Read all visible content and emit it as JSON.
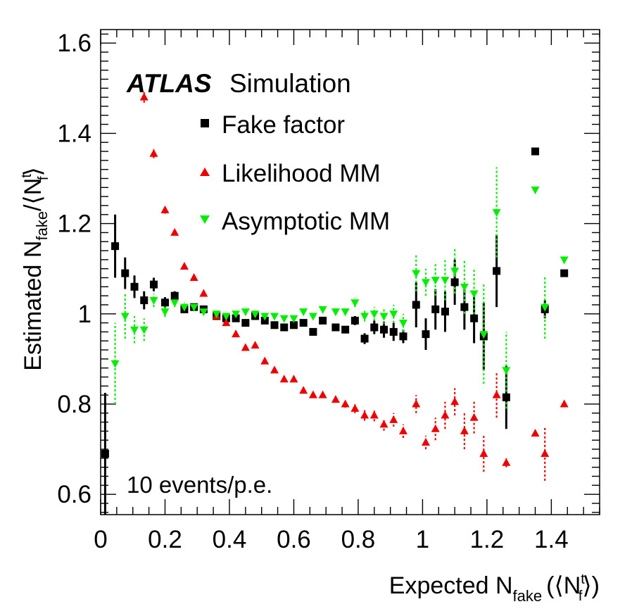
{
  "chart_data": {
    "type": "scatter",
    "experiment": "ATLAS",
    "label_suffix": "Simulation",
    "annotation": "10 events/p.e.",
    "xlabel": {
      "main": "Expected N",
      "sub": "fake",
      "open": "(⟨N",
      "sup": "t",
      "sub2": "f",
      "close": "⟩)"
    },
    "ylabel": {
      "main": "Estimated N",
      "sub": "fake",
      "slash": "/⟨N",
      "sup": "t",
      "sub2": "f",
      "close": "⟩"
    },
    "xlim": [
      0,
      1.55
    ],
    "ylim": [
      0.555,
      1.63
    ],
    "xticks": [
      0,
      0.2,
      0.4,
      0.6,
      0.8,
      1,
      1.2,
      1.4
    ],
    "xtick_labels": [
      "0",
      "0.2",
      "0.4",
      "0.6",
      "0.8",
      "1",
      "1.2",
      "1.4"
    ],
    "yticks": [
      0.6,
      0.8,
      1.0,
      1.2,
      1.4,
      1.6
    ],
    "ytick_labels": [
      "0.6",
      "0.8",
      "1",
      "1.2",
      "1.4",
      "1.6"
    ],
    "colors": {
      "fake_factor": "#000000",
      "likelihood": "#ee0000",
      "asymptotic": "#00ee00"
    },
    "series": [
      {
        "name": "Fake factor",
        "key": "fake_factor",
        "marker": "square",
        "x": [
          0.014,
          0.045,
          0.076,
          0.105,
          0.135,
          0.165,
          0.2,
          0.23,
          0.26,
          0.29,
          0.32,
          0.36,
          0.39,
          0.42,
          0.45,
          0.48,
          0.51,
          0.54,
          0.57,
          0.6,
          0.63,
          0.66,
          0.69,
          0.73,
          0.76,
          0.79,
          0.82,
          0.85,
          0.88,
          0.91,
          0.94,
          0.98,
          1.01,
          1.04,
          1.07,
          1.1,
          1.13,
          1.16,
          1.19,
          1.23,
          1.26,
          1.35,
          1.38,
          1.44
        ],
        "y": [
          0.69,
          1.15,
          1.09,
          1.06,
          1.03,
          1.065,
          1.025,
          1.04,
          1.01,
          1.015,
          1.01,
          0.995,
          0.99,
          0.99,
          0.98,
          0.995,
          0.985,
          0.975,
          0.97,
          0.975,
          0.98,
          0.96,
          0.985,
          0.97,
          0.965,
          0.985,
          0.945,
          0.97,
          0.965,
          0.96,
          0.95,
          1.02,
          0.955,
          1.01,
          1.005,
          1.07,
          1.015,
          0.99,
          0.95,
          1.095,
          0.815,
          1.36,
          1.01,
          1.09
        ],
        "err": [
          0.135,
          0.07,
          0.035,
          0.025,
          0.02,
          0.015,
          0.012,
          0.01,
          0.008,
          0.008,
          0.007,
          0.006,
          0.006,
          0.006,
          0.005,
          0.005,
          0.005,
          0.005,
          0.005,
          0.005,
          0.005,
          0.005,
          0.008,
          0.008,
          0.008,
          0.01,
          0.012,
          0.015,
          0.018,
          0.02,
          0.015,
          0.05,
          0.035,
          0.045,
          0.045,
          0.05,
          0.05,
          0.055,
          0.075,
          0.08,
          0.07,
          0.0,
          0.02,
          0.0
        ]
      },
      {
        "name": "Likelihood MM",
        "key": "likelihood",
        "marker": "triangle-up",
        "x": [
          0.135,
          0.165,
          0.2,
          0.23,
          0.26,
          0.29,
          0.32,
          0.36,
          0.39,
          0.42,
          0.45,
          0.48,
          0.51,
          0.54,
          0.57,
          0.6,
          0.63,
          0.66,
          0.69,
          0.73,
          0.76,
          0.79,
          0.82,
          0.85,
          0.88,
          0.91,
          0.94,
          0.98,
          1.01,
          1.04,
          1.07,
          1.1,
          1.13,
          1.16,
          1.19,
          1.23,
          1.26,
          1.35,
          1.38,
          1.44
        ],
        "y": [
          1.48,
          1.355,
          1.23,
          1.18,
          1.105,
          1.08,
          1.045,
          0.995,
          0.98,
          0.955,
          0.925,
          0.93,
          0.895,
          0.875,
          0.855,
          0.855,
          0.83,
          0.82,
          0.82,
          0.81,
          0.8,
          0.79,
          0.775,
          0.775,
          0.755,
          0.765,
          0.74,
          0.8,
          0.715,
          0.745,
          0.775,
          0.805,
          0.74,
          0.77,
          0.69,
          0.82,
          0.67,
          0.735,
          0.69,
          0.8
        ],
        "err": [
          0.012,
          0.01,
          0.008,
          0.006,
          0.005,
          0.005,
          0.005,
          0.004,
          0.004,
          0.004,
          0.004,
          0.004,
          0.004,
          0.004,
          0.004,
          0.004,
          0.005,
          0.005,
          0.006,
          0.007,
          0.008,
          0.01,
          0.012,
          0.013,
          0.014,
          0.015,
          0.015,
          0.02,
          0.015,
          0.025,
          0.03,
          0.03,
          0.04,
          0.035,
          0.04,
          0.05,
          0.01,
          0.0,
          0.06,
          0.0
        ]
      },
      {
        "name": "Asymptotic MM",
        "key": "asymptotic",
        "marker": "triangle-down",
        "x": [
          0.045,
          0.076,
          0.105,
          0.135,
          0.165,
          0.2,
          0.23,
          0.26,
          0.29,
          0.32,
          0.36,
          0.39,
          0.42,
          0.45,
          0.48,
          0.51,
          0.54,
          0.57,
          0.6,
          0.63,
          0.66,
          0.69,
          0.73,
          0.76,
          0.79,
          0.82,
          0.85,
          0.88,
          0.91,
          0.94,
          0.98,
          1.01,
          1.04,
          1.07,
          1.1,
          1.13,
          1.16,
          1.19,
          1.23,
          1.26,
          1.35,
          1.38,
          1.44
        ],
        "y": [
          0.89,
          0.995,
          0.965,
          0.965,
          1.03,
          1.005,
          1.025,
          1.015,
          1.015,
          1.005,
          1.0,
          0.995,
          1.0,
          1.005,
          1.0,
          0.995,
          0.995,
          0.99,
          0.99,
          1.005,
          0.995,
          1.01,
          1.005,
          1.005,
          1.025,
          0.995,
          1.0,
          0.995,
          1.0,
          0.98,
          1.09,
          1.07,
          1.075,
          1.075,
          1.095,
          1.06,
          1.045,
          0.955,
          1.225,
          0.875,
          1.275,
          1.015,
          1.12
        ],
        "err": [
          0.09,
          0.05,
          0.03,
          0.025,
          0.015,
          0.012,
          0.01,
          0.01,
          0.008,
          0.007,
          0.006,
          0.006,
          0.006,
          0.005,
          0.005,
          0.005,
          0.005,
          0.005,
          0.005,
          0.005,
          0.005,
          0.006,
          0.007,
          0.008,
          0.01,
          0.012,
          0.015,
          0.018,
          0.02,
          0.02,
          0.04,
          0.03,
          0.035,
          0.045,
          0.05,
          0.06,
          0.055,
          0.11,
          0.1,
          0.085,
          0.0,
          0.07,
          0.0
        ]
      }
    ]
  }
}
